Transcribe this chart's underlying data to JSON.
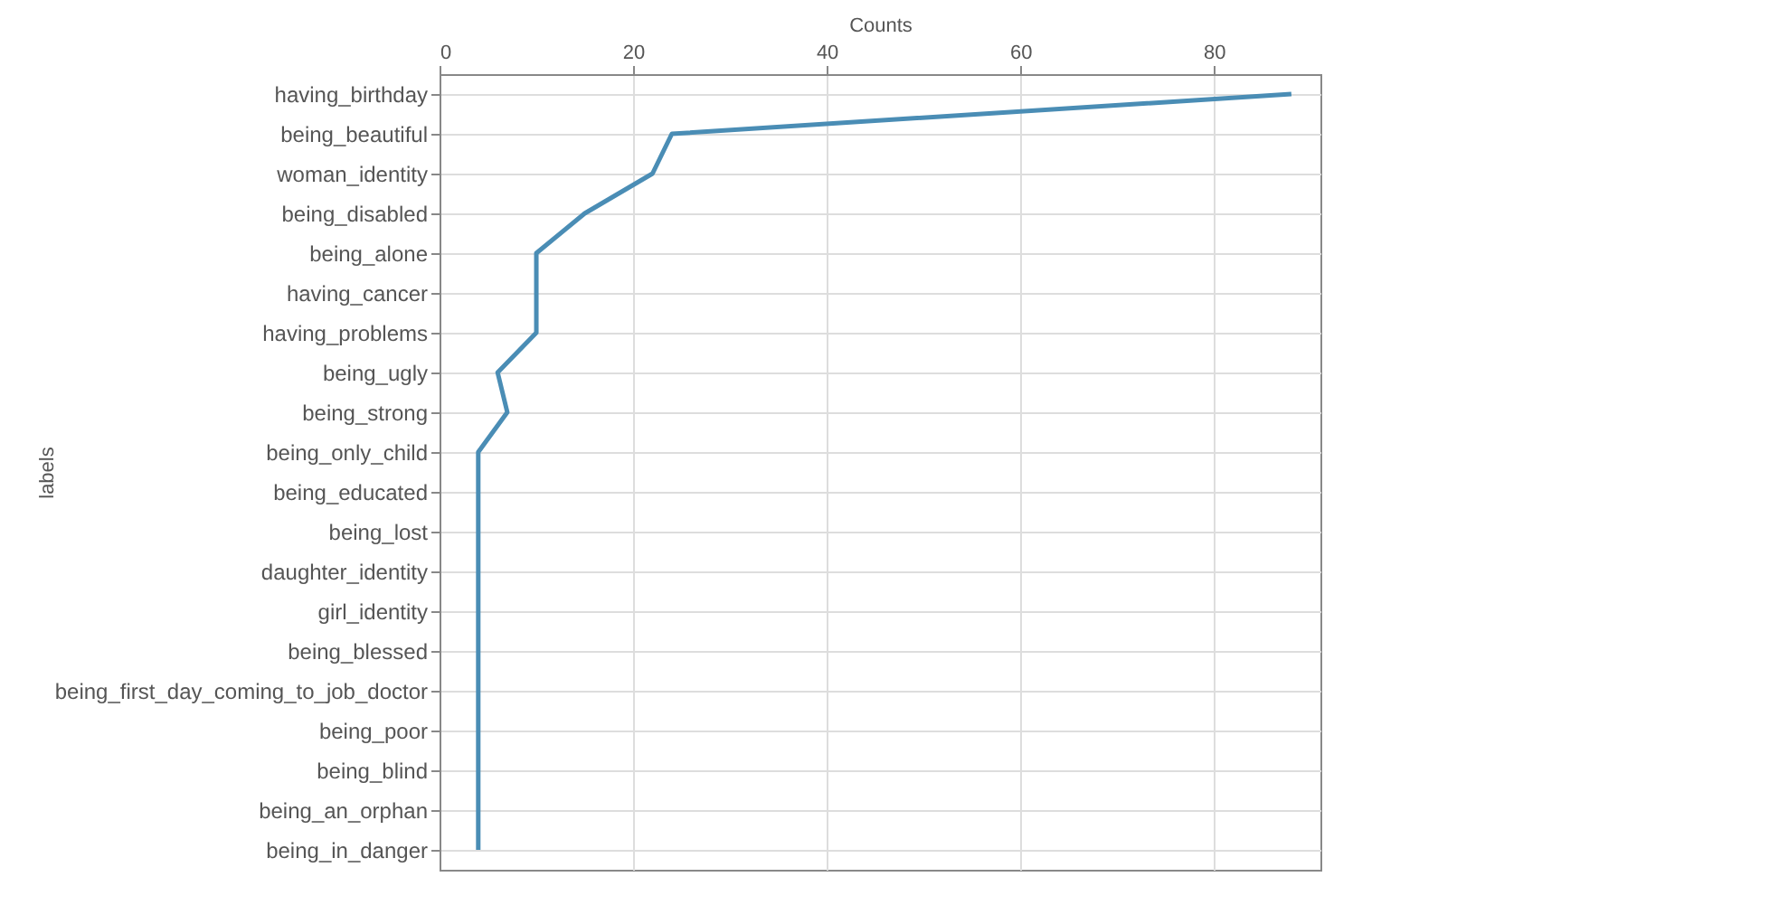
{
  "chart_data": {
    "type": "line",
    "xlabel": "Counts",
    "ylabel": "labels",
    "orientation": "horizontal",
    "categories": [
      "having_birthday",
      "being_beautiful",
      "woman_identity",
      "being_disabled",
      "being_alone",
      "having_cancer",
      "having_problems",
      "being_ugly",
      "being_strong",
      "being_only_child",
      "being_educated",
      "being_lost",
      "daughter_identity",
      "girl_identity",
      "being_blessed",
      "being_first_day_coming_to_job_doctor",
      "being_poor",
      "being_blind",
      "being_an_orphan",
      "being_in_danger"
    ],
    "series": [
      {
        "color": "#4a8db5",
        "values": [
          88,
          24,
          22,
          15,
          10,
          10,
          10,
          6,
          7,
          4,
          4,
          4,
          4,
          4,
          4,
          4,
          4,
          4,
          4,
          4
        ]
      }
    ],
    "xlim": [
      0,
      91
    ],
    "xticks": [
      0,
      20,
      40,
      60,
      80
    ],
    "grid": true
  }
}
